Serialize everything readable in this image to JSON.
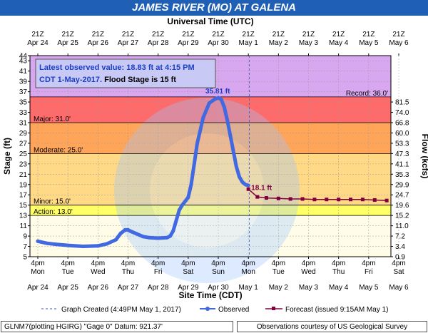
{
  "title": "JAMES RIVER (MO) AT GALENA",
  "colors": {
    "title_bg": "#1f5fb5",
    "record_band": "#d9a6f0",
    "major_band": "#ff6a6a",
    "moderate_band": "#ffa55a",
    "minor_band": "#ffd986",
    "action_band": "#ffff66",
    "normal_band": "#fffde8",
    "observed": "#4169e1",
    "forecast": "#800040"
  },
  "chart_data": {
    "type": "line",
    "title": "JAMES RIVER (MO) AT GALENA",
    "top_axis_label": "Universal Time (UTC)",
    "xlabel": "Site Time (CDT)",
    "ylabel": "Stage (ft)",
    "y2label": "Flow (kcfs)",
    "ylim": [
      5,
      44
    ],
    "yticks": [
      5,
      7,
      9,
      11,
      13,
      15,
      17,
      19,
      21,
      23,
      25,
      27,
      29,
      31,
      33,
      35,
      37,
      39,
      41,
      43,
      44
    ],
    "flow_ticks": [
      {
        "stage": 5,
        "label": "0.9"
      },
      {
        "stage": 7,
        "label": "3.4"
      },
      {
        "stage": 9,
        "label": "7.2"
      },
      {
        "stage": 11,
        "label": "11.0"
      },
      {
        "stage": 13,
        "label": "15.2"
      },
      {
        "stage": 15,
        "label": "19.6"
      },
      {
        "stage": 17,
        "label": "24.7"
      },
      {
        "stage": 19,
        "label": "29.9"
      },
      {
        "stage": 21,
        "label": "35.3"
      },
      {
        "stage": 23,
        "label": "41.1"
      },
      {
        "stage": 25,
        "label": "47.3"
      },
      {
        "stage": 27,
        "label": "53.3"
      },
      {
        "stage": 29,
        "label": "60.0"
      },
      {
        "stage": 31,
        "label": "66.8"
      },
      {
        "stage": 33,
        "label": "74.0"
      },
      {
        "stage": 35,
        "label": "81.5"
      }
    ],
    "x_time_labels": [
      "4pm",
      "4pm",
      "4pm",
      "4pm",
      "4pm",
      "4pm",
      "4pm",
      "4pm",
      "4pm",
      "4pm",
      "4pm",
      "4pm",
      "4pm"
    ],
    "x_day_labels": [
      "Mon",
      "Tue",
      "Wed",
      "Thu",
      "Fri",
      "Sat",
      "Sun",
      "Mon",
      "Tue",
      "Wed",
      "Thu",
      "Fri",
      "Sat"
    ],
    "x_date_labels": [
      "Apr 24",
      "Apr 25",
      "Apr 26",
      "Apr 27",
      "Apr 28",
      "Apr 29",
      "Apr 30",
      "May 1",
      "May 2",
      "May 3",
      "May 4",
      "May 5",
      "May 6"
    ],
    "top_time_labels": [
      "21Z",
      "21Z",
      "21Z",
      "21Z",
      "21Z",
      "21Z",
      "21Z",
      "21Z",
      "21Z",
      "21Z",
      "21Z",
      "21Z",
      "21Z"
    ],
    "top_date_labels": [
      "Apr 24",
      "Apr 25",
      "Apr 26",
      "Apr 27",
      "Apr 28",
      "Apr 29",
      "Apr 30",
      "May 1",
      "May 2",
      "May 3",
      "May 4",
      "May 5",
      "May 6"
    ],
    "flood_categories": [
      {
        "name": "Record",
        "label": "Record: 36.0'",
        "stage": 36.0
      },
      {
        "name": "Major",
        "label": "Major: 31.0'",
        "stage": 31.0
      },
      {
        "name": "Moderate",
        "label": "Moderate: 25.0'",
        "stage": 25.0
      },
      {
        "name": "Minor",
        "label": "Minor: 15.0'",
        "stage": 15.0
      },
      {
        "name": "Action",
        "label": "Action: 13.0'",
        "stage": 13.0
      }
    ],
    "series": [
      {
        "name": "Observed",
        "x_days": [
          0.0,
          0.3,
          0.6,
          1.0,
          1.5,
          2.0,
          2.3,
          2.6,
          2.75,
          2.9,
          3.0,
          3.1,
          3.3,
          3.5,
          3.7,
          4.0,
          4.3,
          4.4,
          4.5,
          4.6,
          4.7,
          4.8,
          5.0,
          5.1,
          5.2,
          5.3,
          5.5,
          5.7,
          5.9,
          6.0,
          6.1,
          6.2,
          6.3,
          6.4,
          6.5,
          6.6,
          6.7,
          6.8,
          6.9,
          7.0
        ],
        "values": [
          8.0,
          7.6,
          7.4,
          7.2,
          7.0,
          7.1,
          7.5,
          8.3,
          9.5,
          10.2,
          10.2,
          9.9,
          9.4,
          8.9,
          8.7,
          8.6,
          8.7,
          9.0,
          10.0,
          12.0,
          14.0,
          15.0,
          16.5,
          19.0,
          23.0,
          27.0,
          32.0,
          34.8,
          35.6,
          35.81,
          35.5,
          34.0,
          31.5,
          28.5,
          25.5,
          22.5,
          20.5,
          19.5,
          19.0,
          18.83
        ]
      },
      {
        "name": "Forecast (issued 9:15AM May 1)",
        "x_days": [
          7.0,
          7.3,
          7.6,
          8.0,
          8.4,
          8.8,
          9.2,
          9.6,
          10.0,
          10.4,
          10.8,
          11.2,
          11.6
        ],
        "values": [
          18.1,
          16.6,
          16.4,
          16.3,
          16.2,
          16.2,
          16.1,
          16.1,
          16.1,
          16.1,
          16.1,
          16.0,
          15.9
        ]
      }
    ],
    "data_labels": [
      {
        "series": "Observed",
        "x_day": 6.0,
        "value": 35.81,
        "text": "35.81 ft"
      },
      {
        "series": "Forecast (issued 9:15AM May 1)",
        "x_day": 7.0,
        "value": 18.1,
        "text": "18.1 ft"
      }
    ],
    "created_x_day": 7.03,
    "info_box": {
      "line1": "Latest observed value: 18.83 ft at 4:15 PM",
      "line2_blue": "CDT 1-May-2017.",
      "line2_black": " Flood Stage is 15 ft"
    }
  },
  "legend": {
    "created": "Graph Created (4:49PM May 1, 2017)",
    "observed": "Observed",
    "forecast": "Forecast (issued 9:15AM May 1)"
  },
  "footer": {
    "left": "GLNM7(plotting HGIRG) \"Gage 0\" Datum: 921.37'",
    "right": "Observations courtesy of US Geological Survey"
  }
}
